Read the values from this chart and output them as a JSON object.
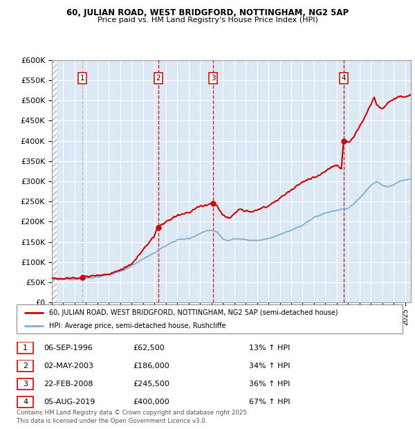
{
  "title1": "60, JULIAN ROAD, WEST BRIDGFORD, NOTTINGHAM, NG2 5AP",
  "title2": "Price paid vs. HM Land Registry's House Price Index (HPI)",
  "plot_bg": "#dce9f5",
  "ylim": [
    0,
    600000
  ],
  "yticks": [
    0,
    50000,
    100000,
    150000,
    200000,
    250000,
    300000,
    350000,
    400000,
    450000,
    500000,
    550000,
    600000
  ],
  "xlim_start": 1994.0,
  "xlim_end": 2025.5,
  "sale_dates": [
    1996.68,
    2003.33,
    2008.14,
    2019.59
  ],
  "sale_prices": [
    62500,
    186000,
    245500,
    400000
  ],
  "sale_labels": [
    "1",
    "2",
    "3",
    "4"
  ],
  "legend_line1": "60, JULIAN ROAD, WEST BRIDGFORD, NOTTINGHAM, NG2 5AP (semi-detached house)",
  "legend_line2": "HPI: Average price, semi-detached house, Rushcliffe",
  "table_rows": [
    [
      "1",
      "06-SEP-1996",
      "£62,500",
      "13% ↑ HPI"
    ],
    [
      "2",
      "02-MAY-2003",
      "£186,000",
      "34% ↑ HPI"
    ],
    [
      "3",
      "22-FEB-2008",
      "£245,500",
      "36% ↑ HPI"
    ],
    [
      "4",
      "05-AUG-2019",
      "£400,000",
      "67% ↑ HPI"
    ]
  ],
  "footer": "Contains HM Land Registry data © Crown copyright and database right 2025.\nThis data is licensed under the Open Government Licence v3.0.",
  "red_color": "#cc0000",
  "blue_color": "#7ab0d4",
  "sale1_vline_color": "#bbbbbb"
}
